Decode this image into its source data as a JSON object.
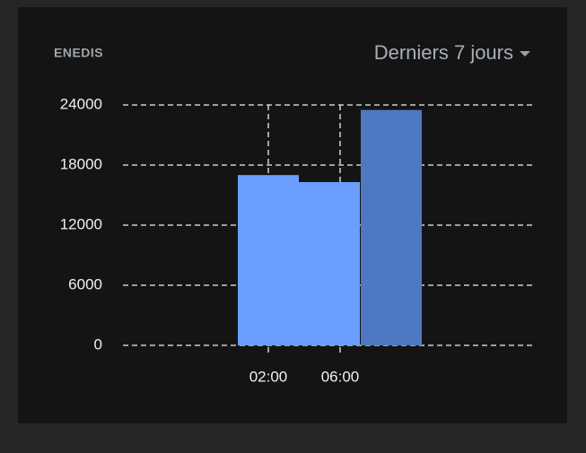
{
  "card": {
    "title": "ENEDIS",
    "period": "Derniers 7 jours"
  },
  "chart_data": {
    "type": "bar",
    "x": [
      2,
      5.4,
      8.85
    ],
    "values": [
      17000,
      16300,
      23500
    ],
    "colors": [
      "#6a9eff",
      "#6a9eff",
      "#4f78c2"
    ],
    "xlim": [
      -6.1,
      16.7
    ],
    "xticks": [
      {
        "value": 2,
        "label": "02:00"
      },
      {
        "value": 6,
        "label": "06:00"
      }
    ],
    "ylim": [
      0,
      24000
    ],
    "yticks": [
      0,
      6000,
      12000,
      18000,
      24000
    ],
    "grid": true
  }
}
